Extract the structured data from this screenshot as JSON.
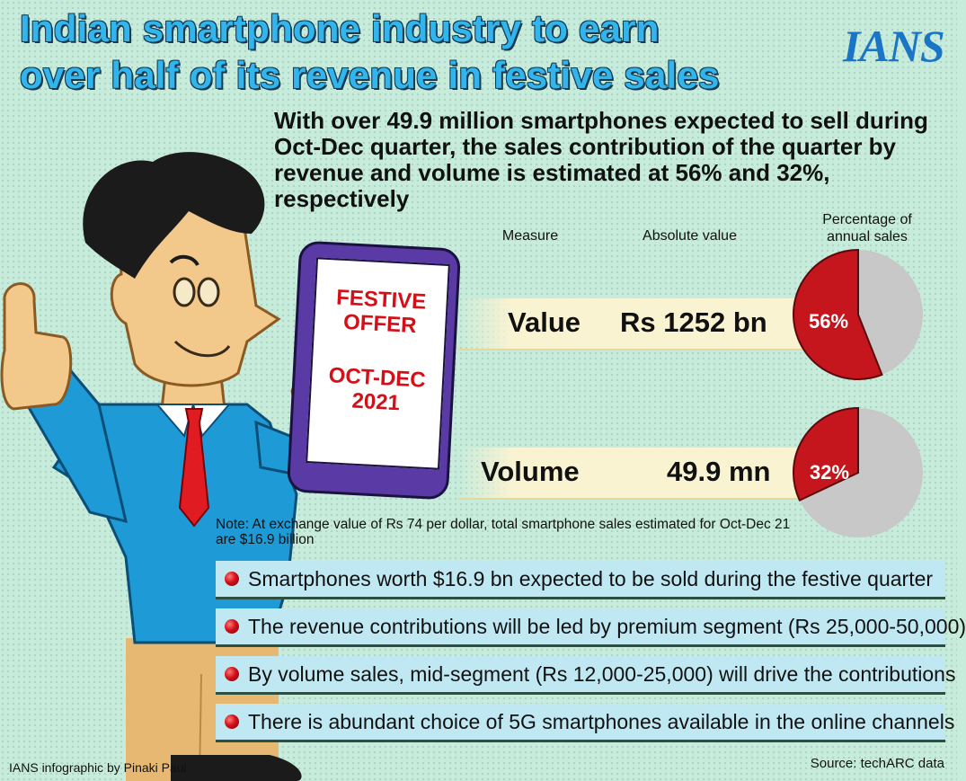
{
  "header": {
    "title_line1": "Indian smartphone industry to earn",
    "title_line2": "over half of its revenue in festive sales",
    "logo": "IANS"
  },
  "subtitle": "With over 49.9 million smartphones expected to sell during Oct-Dec quarter, the sales contribution of the quarter by revenue and volume is estimated at 56% and 32%, respectively",
  "phone": {
    "line1": "FESTIVE",
    "line2": "OFFER",
    "line3": "OCT-DEC",
    "line4": "2021"
  },
  "colors": {
    "background": "#c7ecdc",
    "title": "#31b5ec",
    "pie_share": "#c4161c",
    "pie_rest": "#c8c8c8",
    "band": "#faf3d2",
    "bullet_box": "#bfe8f3"
  },
  "chart_data": {
    "type": "table",
    "columns": [
      "Measure",
      "Absolute value",
      "Percentage of annual sales"
    ],
    "rows": [
      {
        "measure": "Value",
        "absolute": "Rs 1252 bn",
        "percent": 56,
        "percent_label": "56%"
      },
      {
        "measure": "Volume",
        "absolute": "49.9 mn",
        "percent": 32,
        "percent_label": "32%"
      }
    ]
  },
  "note": "Note: At exchange value of Rs 74 per dollar, total smartphone sales estimated for Oct-Dec 21 are $16.9 billion",
  "bullets": [
    "Smartphones worth $16.9 bn expected to be sold during the festive quarter",
    "The revenue contributions will be led by premium segment (Rs 25,000-50,000)",
    "By volume sales, mid-segment (Rs 12,000-25,000) will drive the contributions",
    "There is abundant choice of 5G smartphones available in the online channels"
  ],
  "footer": {
    "credit": "IANS infographic by Pinaki Paul",
    "source": "Source: techARC data"
  }
}
